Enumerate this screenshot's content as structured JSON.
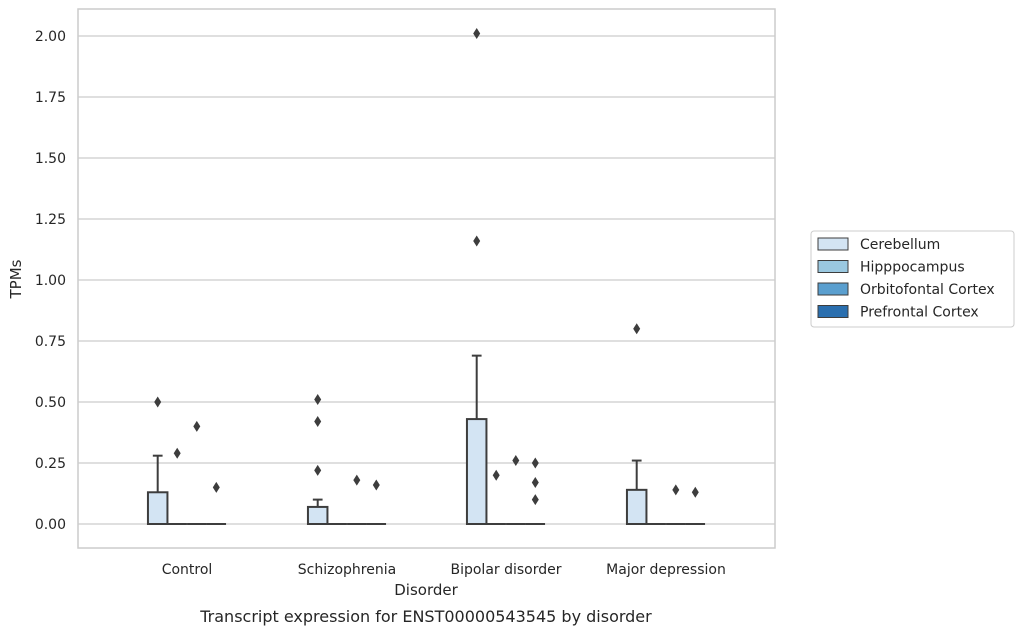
{
  "chart_data": {
    "type": "box",
    "title": "Transcript expression for ENST00000543545 by disorder",
    "xlabel": "Disorder",
    "ylabel": "TPMs",
    "ylim": [
      -0.1,
      2.1
    ],
    "yticks": [
      "0.00",
      "0.25",
      "0.50",
      "0.75",
      "1.00",
      "1.25",
      "1.50",
      "1.75",
      "2.00"
    ],
    "ytick_values": [
      0,
      0.25,
      0.5,
      0.75,
      1.0,
      1.25,
      1.5,
      1.75,
      2.0
    ],
    "grid": true,
    "legend_placement": "right",
    "categories": [
      "Control",
      "Schizophrenia",
      "Bipolar disorder",
      "Major depression"
    ],
    "series": [
      {
        "name": "Cerebellum",
        "color": "#d3e4f3",
        "boxes": [
          {
            "q1": 0,
            "median": 0,
            "q3": 0.13,
            "whisker_low": 0,
            "whisker_high": 0.28,
            "outliers": [
              0.5
            ]
          },
          {
            "q1": 0,
            "median": 0,
            "q3": 0.07,
            "whisker_low": 0,
            "whisker_high": 0.1,
            "outliers": [
              0.51,
              0.42,
              0.22
            ]
          },
          {
            "q1": 0,
            "median": 0,
            "q3": 0.43,
            "whisker_low": 0,
            "whisker_high": 0.69,
            "outliers": [
              2.01,
              1.16
            ]
          },
          {
            "q1": 0,
            "median": 0,
            "q3": 0.14,
            "whisker_low": 0,
            "whisker_high": 0.26,
            "outliers": [
              0.8
            ]
          }
        ]
      },
      {
        "name": "Hipppocampus",
        "color": "#9ac8e0",
        "boxes": [
          {
            "q1": 0,
            "median": 0,
            "q3": 0,
            "whisker_low": 0,
            "whisker_high": 0,
            "outliers": [
              0.29
            ]
          },
          {
            "q1": 0,
            "median": 0,
            "q3": 0,
            "whisker_low": 0,
            "whisker_high": 0,
            "outliers": []
          },
          {
            "q1": 0,
            "median": 0,
            "q3": 0,
            "whisker_low": 0,
            "whisker_high": 0,
            "outliers": [
              0.2
            ]
          },
          {
            "q1": 0,
            "median": 0,
            "q3": 0,
            "whisker_low": 0,
            "whisker_high": 0,
            "outliers": []
          }
        ]
      },
      {
        "name": "Orbitofontal Cortex",
        "color": "#5a9fcf",
        "boxes": [
          {
            "q1": 0,
            "median": 0,
            "q3": 0,
            "whisker_low": 0,
            "whisker_high": 0,
            "outliers": [
              0.4
            ]
          },
          {
            "q1": 0,
            "median": 0,
            "q3": 0,
            "whisker_low": 0,
            "whisker_high": 0,
            "outliers": [
              0.18
            ]
          },
          {
            "q1": 0,
            "median": 0,
            "q3": 0,
            "whisker_low": 0,
            "whisker_high": 0,
            "outliers": [
              0.26
            ]
          },
          {
            "q1": 0,
            "median": 0,
            "q3": 0,
            "whisker_low": 0,
            "whisker_high": 0,
            "outliers": [
              0.14
            ]
          }
        ]
      },
      {
        "name": "Prefrontal Cortex",
        "color": "#2a6faf",
        "boxes": [
          {
            "q1": 0,
            "median": 0,
            "q3": 0,
            "whisker_low": 0,
            "whisker_high": 0,
            "outliers": [
              0.15
            ]
          },
          {
            "q1": 0,
            "median": 0,
            "q3": 0,
            "whisker_low": 0,
            "whisker_high": 0,
            "outliers": [
              0.16
            ]
          },
          {
            "q1": 0,
            "median": 0,
            "q3": 0,
            "whisker_low": 0,
            "whisker_high": 0,
            "outliers": [
              0.25,
              0.17,
              0.1
            ]
          },
          {
            "q1": 0,
            "median": 0,
            "q3": 0,
            "whisker_low": 0,
            "whisker_high": 0,
            "outliers": [
              0.13
            ]
          }
        ]
      }
    ],
    "colors": {
      "grid": "#cccccc",
      "frame": "#cccccc",
      "box_edge": "#3d3d3d",
      "outlier": "#3d3d3d"
    }
  }
}
